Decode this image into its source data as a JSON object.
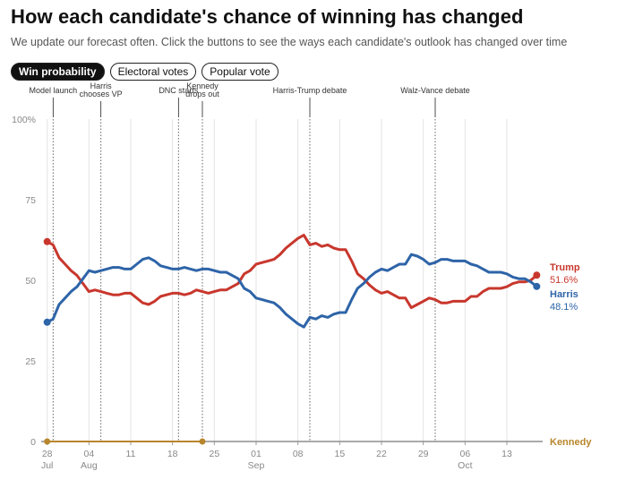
{
  "header": {
    "title": "How each candidate's chance of winning has changed",
    "subtitle": "We update our forecast often. Click the buttons to see the ways each candidate's outlook has changed over time"
  },
  "tabs": [
    {
      "label": "Win probability",
      "active": true
    },
    {
      "label": "Electoral votes",
      "active": false
    },
    {
      "label": "Popular vote",
      "active": false
    }
  ],
  "chart_data": {
    "type": "line",
    "title": "How each candidate's chance of winning has changed",
    "xlabel": "",
    "ylabel": "",
    "ylim": [
      0,
      100
    ],
    "y_ticks": [
      {
        "value": 0,
        "label": "0"
      },
      {
        "value": 25,
        "label": "25"
      },
      {
        "value": 50,
        "label": "50"
      },
      {
        "value": 75,
        "label": "75"
      },
      {
        "value": 100,
        "label": "100%"
      }
    ],
    "x_range": [
      "2024-07-27",
      "2024-10-19"
    ],
    "x_ticks": [
      {
        "date": "2024-07-28",
        "label": "28",
        "sub": "Jul"
      },
      {
        "date": "2024-08-04",
        "label": "04",
        "sub": "Aug"
      },
      {
        "date": "2024-08-11",
        "label": "11",
        "sub": ""
      },
      {
        "date": "2024-08-18",
        "label": "18",
        "sub": ""
      },
      {
        "date": "2024-08-25",
        "label": "25",
        "sub": ""
      },
      {
        "date": "2024-09-01",
        "label": "01",
        "sub": "Sep"
      },
      {
        "date": "2024-09-08",
        "label": "08",
        "sub": ""
      },
      {
        "date": "2024-09-15",
        "label": "15",
        "sub": ""
      },
      {
        "date": "2024-09-22",
        "label": "22",
        "sub": ""
      },
      {
        "date": "2024-09-29",
        "label": "29",
        "sub": ""
      },
      {
        "date": "2024-10-06",
        "label": "06",
        "sub": "Oct"
      },
      {
        "date": "2024-10-13",
        "label": "13",
        "sub": ""
      }
    ],
    "events": [
      {
        "date": "2024-07-29",
        "lines": [
          "Model launch"
        ]
      },
      {
        "date": "2024-08-06",
        "lines": [
          "Harris",
          "chooses VP"
        ]
      },
      {
        "date": "2024-08-19",
        "lines": [
          "DNC starts"
        ]
      },
      {
        "date": "2024-08-23",
        "lines": [
          "Kennedy",
          "drops out"
        ]
      },
      {
        "date": "2024-09-10",
        "lines": [
          "Harris-Trump debate"
        ]
      },
      {
        "date": "2024-10-01",
        "lines": [
          "Walz-Vance debate"
        ]
      }
    ],
    "grid": "vertical weekly lines",
    "series": [
      {
        "name": "Trump",
        "color": "#c8372d",
        "end_label": "Trump",
        "end_value_label": "51.6%",
        "points": [
          [
            "2024-07-28",
            62
          ],
          [
            "2024-07-29",
            61
          ],
          [
            "2024-07-30",
            57
          ],
          [
            "2024-07-31",
            55
          ],
          [
            "2024-08-01",
            53
          ],
          [
            "2024-08-02",
            51.5
          ],
          [
            "2024-08-03",
            49
          ],
          [
            "2024-08-04",
            46.5
          ],
          [
            "2024-08-05",
            47
          ],
          [
            "2024-08-06",
            46.5
          ],
          [
            "2024-08-07",
            46
          ],
          [
            "2024-08-08",
            45.5
          ],
          [
            "2024-08-09",
            45.5
          ],
          [
            "2024-08-10",
            46
          ],
          [
            "2024-08-11",
            46
          ],
          [
            "2024-08-12",
            44.5
          ],
          [
            "2024-08-13",
            43
          ],
          [
            "2024-08-14",
            42.5
          ],
          [
            "2024-08-15",
            43.5
          ],
          [
            "2024-08-16",
            45
          ],
          [
            "2024-08-17",
            45.5
          ],
          [
            "2024-08-18",
            46
          ],
          [
            "2024-08-19",
            46
          ],
          [
            "2024-08-20",
            45.5
          ],
          [
            "2024-08-21",
            46
          ],
          [
            "2024-08-22",
            47
          ],
          [
            "2024-08-23",
            46.5
          ],
          [
            "2024-08-24",
            46
          ],
          [
            "2024-08-25",
            46.5
          ],
          [
            "2024-08-26",
            47
          ],
          [
            "2024-08-27",
            47
          ],
          [
            "2024-08-28",
            48
          ],
          [
            "2024-08-29",
            49
          ],
          [
            "2024-08-30",
            52
          ],
          [
            "2024-08-31",
            53
          ],
          [
            "2024-09-01",
            55
          ],
          [
            "2024-09-02",
            55.5
          ],
          [
            "2024-09-03",
            56
          ],
          [
            "2024-09-04",
            56.5
          ],
          [
            "2024-09-05",
            58
          ],
          [
            "2024-09-06",
            60
          ],
          [
            "2024-09-07",
            61.5
          ],
          [
            "2024-09-08",
            63
          ],
          [
            "2024-09-09",
            64
          ],
          [
            "2024-09-10",
            61
          ],
          [
            "2024-09-11",
            61.5
          ],
          [
            "2024-09-12",
            60.5
          ],
          [
            "2024-09-13",
            61
          ],
          [
            "2024-09-14",
            60
          ],
          [
            "2024-09-15",
            59.5
          ],
          [
            "2024-09-16",
            59.5
          ],
          [
            "2024-09-17",
            56
          ],
          [
            "2024-09-18",
            52
          ],
          [
            "2024-09-19",
            50.5
          ],
          [
            "2024-09-20",
            48.5
          ],
          [
            "2024-09-21",
            47
          ],
          [
            "2024-09-22",
            46
          ],
          [
            "2024-09-23",
            46.5
          ],
          [
            "2024-09-24",
            45.5
          ],
          [
            "2024-09-25",
            44.5
          ],
          [
            "2024-09-26",
            44.5
          ],
          [
            "2024-09-27",
            41.5
          ],
          [
            "2024-09-28",
            42.5
          ],
          [
            "2024-09-29",
            43.5
          ],
          [
            "2024-09-30",
            44.5
          ],
          [
            "2024-10-01",
            44
          ],
          [
            "2024-10-02",
            43
          ],
          [
            "2024-10-03",
            43
          ],
          [
            "2024-10-04",
            43.5
          ],
          [
            "2024-10-05",
            43.5
          ],
          [
            "2024-10-06",
            43.5
          ],
          [
            "2024-10-07",
            45
          ],
          [
            "2024-10-08",
            45
          ],
          [
            "2024-10-09",
            46.5
          ],
          [
            "2024-10-10",
            47.5
          ],
          [
            "2024-10-11",
            47.5
          ],
          [
            "2024-10-12",
            47.5
          ],
          [
            "2024-10-13",
            48
          ],
          [
            "2024-10-14",
            49
          ],
          [
            "2024-10-15",
            49.5
          ],
          [
            "2024-10-16",
            49.5
          ],
          [
            "2024-10-17",
            50
          ],
          [
            "2024-10-18",
            51.6
          ]
        ]
      },
      {
        "name": "Harris",
        "color": "#2e64a8",
        "end_label": "Harris",
        "end_value_label": "48.1%",
        "points": [
          [
            "2024-07-28",
            37
          ],
          [
            "2024-07-29",
            38
          ],
          [
            "2024-07-30",
            42.5
          ],
          [
            "2024-07-31",
            44.5
          ],
          [
            "2024-08-01",
            46.5
          ],
          [
            "2024-08-02",
            48
          ],
          [
            "2024-08-03",
            50.5
          ],
          [
            "2024-08-04",
            53
          ],
          [
            "2024-08-05",
            52.5
          ],
          [
            "2024-08-06",
            53
          ],
          [
            "2024-08-07",
            53.5
          ],
          [
            "2024-08-08",
            54
          ],
          [
            "2024-08-09",
            54
          ],
          [
            "2024-08-10",
            53.5
          ],
          [
            "2024-08-11",
            53.5
          ],
          [
            "2024-08-12",
            55
          ],
          [
            "2024-08-13",
            56.5
          ],
          [
            "2024-08-14",
            57
          ],
          [
            "2024-08-15",
            56
          ],
          [
            "2024-08-16",
            54.5
          ],
          [
            "2024-08-17",
            54
          ],
          [
            "2024-08-18",
            53.5
          ],
          [
            "2024-08-19",
            53.5
          ],
          [
            "2024-08-20",
            54
          ],
          [
            "2024-08-21",
            53.5
          ],
          [
            "2024-08-22",
            53
          ],
          [
            "2024-08-23",
            53.5
          ],
          [
            "2024-08-24",
            53.5
          ],
          [
            "2024-08-25",
            53
          ],
          [
            "2024-08-26",
            52.5
          ],
          [
            "2024-08-27",
            52.5
          ],
          [
            "2024-08-28",
            51.5
          ],
          [
            "2024-08-29",
            50.5
          ],
          [
            "2024-08-30",
            47.5
          ],
          [
            "2024-08-31",
            46.5
          ],
          [
            "2024-09-01",
            44.5
          ],
          [
            "2024-09-02",
            44
          ],
          [
            "2024-09-03",
            43.5
          ],
          [
            "2024-09-04",
            43
          ],
          [
            "2024-09-05",
            41.5
          ],
          [
            "2024-09-06",
            39.5
          ],
          [
            "2024-09-07",
            38
          ],
          [
            "2024-09-08",
            36.5
          ],
          [
            "2024-09-09",
            35.5
          ],
          [
            "2024-09-10",
            38.5
          ],
          [
            "2024-09-11",
            38
          ],
          [
            "2024-09-12",
            39
          ],
          [
            "2024-09-13",
            38.5
          ],
          [
            "2024-09-14",
            39.5
          ],
          [
            "2024-09-15",
            40
          ],
          [
            "2024-09-16",
            40
          ],
          [
            "2024-09-17",
            44
          ],
          [
            "2024-09-18",
            47.5
          ],
          [
            "2024-09-19",
            49
          ],
          [
            "2024-09-20",
            51
          ],
          [
            "2024-09-21",
            52.5
          ],
          [
            "2024-09-22",
            53.5
          ],
          [
            "2024-09-23",
            53
          ],
          [
            "2024-09-24",
            54
          ],
          [
            "2024-09-25",
            55
          ],
          [
            "2024-09-26",
            55
          ],
          [
            "2024-09-27",
            58
          ],
          [
            "2024-09-28",
            57.5
          ],
          [
            "2024-09-29",
            56.5
          ],
          [
            "2024-09-30",
            55
          ],
          [
            "2024-10-01",
            55.5
          ],
          [
            "2024-10-02",
            56.5
          ],
          [
            "2024-10-03",
            56.5
          ],
          [
            "2024-10-04",
            56
          ],
          [
            "2024-10-05",
            56
          ],
          [
            "2024-10-06",
            56
          ],
          [
            "2024-10-07",
            55
          ],
          [
            "2024-10-08",
            54.5
          ],
          [
            "2024-10-09",
            53.5
          ],
          [
            "2024-10-10",
            52.5
          ],
          [
            "2024-10-11",
            52.5
          ],
          [
            "2024-10-12",
            52.5
          ],
          [
            "2024-10-13",
            52
          ],
          [
            "2024-10-14",
            51
          ],
          [
            "2024-10-15",
            50.5
          ],
          [
            "2024-10-16",
            50.5
          ],
          [
            "2024-10-17",
            49.5
          ],
          [
            "2024-10-18",
            48.1
          ]
        ]
      },
      {
        "name": "Kennedy",
        "color": "#b8862c",
        "end_label": "Kennedy",
        "points": [
          [
            "2024-07-28",
            0
          ],
          [
            "2024-08-23",
            0
          ]
        ]
      }
    ]
  }
}
